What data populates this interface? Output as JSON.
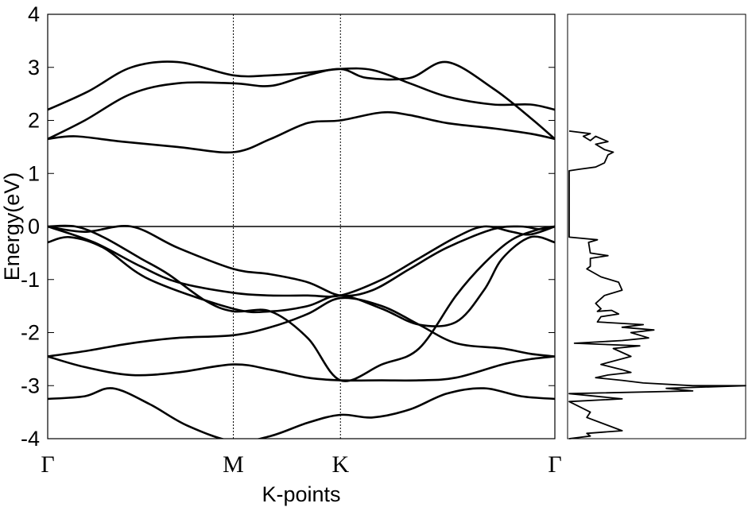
{
  "chart_data": [
    {
      "type": "line",
      "title": "",
      "xlabel": "K-points",
      "ylabel": "Energy(eV)",
      "x_ticks": [
        {
          "label": "Γ",
          "x": 0
        },
        {
          "label": "M",
          "x": 1
        },
        {
          "label": "K",
          "x": 1.577
        },
        {
          "label": "Γ",
          "x": 2.732
        }
      ],
      "xlim": [
        0,
        2.732
      ],
      "ylim": [
        -4,
        4
      ],
      "y_ticks": [
        {
          "label": "4",
          "value": 4
        },
        {
          "label": "3",
          "value": 3
        },
        {
          "label": "2",
          "value": 2
        },
        {
          "label": "1",
          "value": 1
        },
        {
          "label": "0",
          "value": 0
        },
        {
          "label": "-1",
          "value": -1
        },
        {
          "label": "-2",
          "value": -2
        },
        {
          "label": "-3",
          "value": -3
        },
        {
          "label": "-4",
          "value": -4
        }
      ],
      "fermi_level": 0,
      "grid": false,
      "color": "#000000",
      "series": [
        {
          "x": [
            0,
            0.22,
            0.45,
            0.7,
            1,
            1.2,
            1.4,
            1.577,
            1.75,
            1.95,
            2.15,
            2.4,
            2.6,
            2.732
          ],
          "y": [
            2.2,
            2.55,
            3.0,
            3.1,
            2.85,
            2.85,
            2.9,
            2.97,
            2.95,
            2.7,
            2.45,
            2.3,
            2.3,
            2.2
          ]
        },
        {
          "x": [
            0,
            0.2,
            0.45,
            0.7,
            1,
            1.2,
            1.4,
            1.577,
            1.72,
            1.95,
            2.15,
            2.4,
            2.6,
            2.732
          ],
          "y": [
            1.65,
            2.0,
            2.5,
            2.7,
            2.7,
            2.65,
            2.85,
            2.97,
            2.8,
            2.8,
            3.1,
            2.6,
            2.05,
            1.65
          ]
        },
        {
          "x": [
            0,
            0.15,
            0.4,
            0.7,
            1,
            1.2,
            1.4,
            1.577,
            1.8,
            1.95,
            2.15,
            2.4,
            2.6,
            2.732
          ],
          "y": [
            1.65,
            1.7,
            1.6,
            1.5,
            1.4,
            1.65,
            1.95,
            2.0,
            2.15,
            2.1,
            1.95,
            1.85,
            1.75,
            1.65
          ]
        },
        {
          "x": [
            0,
            0.12,
            0.3,
            0.55,
            1,
            1.2,
            1.4,
            1.577,
            1.8,
            2.0,
            2.2,
            2.35,
            2.45,
            2.6,
            2.732
          ],
          "y": [
            -0.3,
            -0.2,
            -0.4,
            -1.0,
            -1.55,
            -1.6,
            -1.5,
            -1.3,
            -1.55,
            -1.85,
            -1.8,
            -1.2,
            -0.6,
            -0.2,
            -0.3
          ]
        },
        {
          "x": [
            0,
            0.15,
            0.3,
            0.5,
            0.65,
            0.85,
            1,
            1.2,
            1.4,
            1.577,
            1.8,
            2.0,
            2.2,
            2.35,
            2.5,
            2.65,
            2.732
          ],
          "y": [
            0,
            0,
            -0.2,
            -0.6,
            -0.9,
            -1.4,
            -1.6,
            -1.6,
            -2.1,
            -2.9,
            -2.6,
            -2.3,
            -1.3,
            -0.7,
            -0.25,
            -0.05,
            0
          ]
        },
        {
          "x": [
            0,
            0.2,
            0.45,
            0.7,
            1,
            1.2,
            1.4,
            1.577,
            1.75,
            1.95,
            2.15,
            2.4,
            2.55,
            2.65,
            2.732
          ],
          "y": [
            0,
            -0.1,
            0,
            -0.4,
            -0.8,
            -0.9,
            -1.05,
            -1.3,
            -1.2,
            -0.8,
            -0.4,
            -0.05,
            0.0,
            -0.05,
            0
          ]
        },
        {
          "x": [
            0,
            0.25,
            0.5,
            0.7,
            1,
            1.2,
            1.4,
            1.577,
            1.8,
            2.0,
            2.2,
            2.35,
            2.5,
            2.6,
            2.732
          ],
          "y": [
            0,
            -0.3,
            -0.75,
            -1.05,
            -1.25,
            -1.3,
            -1.3,
            -1.3,
            -1.0,
            -0.6,
            -0.2,
            -0.0,
            -0.1,
            -0.15,
            0
          ]
        },
        {
          "x": [
            0,
            0.2,
            0.45,
            0.7,
            1,
            1.2,
            1.4,
            1.577,
            1.8,
            2.0,
            2.2,
            2.45,
            2.6,
            2.732
          ],
          "y": [
            -2.45,
            -2.35,
            -2.2,
            -2.1,
            -2.05,
            -1.9,
            -1.65,
            -1.35,
            -1.5,
            -1.85,
            -2.2,
            -2.3,
            -2.4,
            -2.45
          ]
        },
        {
          "x": [
            0,
            0.2,
            0.45,
            0.7,
            1,
            1.2,
            1.4,
            1.577,
            1.8,
            2.0,
            2.2,
            2.45,
            2.6,
            2.732
          ],
          "y": [
            -2.45,
            -2.65,
            -2.8,
            -2.75,
            -2.6,
            -2.7,
            -2.85,
            -2.9,
            -2.9,
            -2.9,
            -2.85,
            -2.6,
            -2.5,
            -2.45
          ]
        },
        {
          "x": [
            0,
            0.2,
            0.35,
            0.55,
            0.75,
            1,
            1.2,
            1.4,
            1.577,
            1.75,
            1.95,
            2.15,
            2.35,
            2.55,
            2.732
          ],
          "y": [
            -3.25,
            -3.2,
            -3.05,
            -3.35,
            -3.75,
            -4.05,
            -3.95,
            -3.7,
            -3.55,
            -3.6,
            -3.45,
            -3.15,
            -3.05,
            -3.2,
            -3.25
          ]
        }
      ]
    },
    {
      "type": "line",
      "title": "",
      "xlabel": "",
      "ylabel": "",
      "ylim": [
        -4,
        4
      ],
      "xlim": [
        0,
        1
      ],
      "color": "#000000",
      "x": [
        0.0,
        0.12,
        0.08,
        0.12,
        0.15,
        0.22,
        0.15,
        0.2,
        0.25,
        0.22,
        0.2,
        0.15,
        0.06,
        0.0,
        0.0,
        0.0,
        0.16,
        0.11,
        0.12,
        0.22,
        0.12,
        0.12,
        0.1,
        0.18,
        0.28,
        0.3,
        0.2,
        0.15,
        0.18,
        0.16,
        0.24,
        0.28,
        0.18,
        0.16,
        0.42,
        0.3,
        0.48,
        0.35,
        0.45,
        0.3,
        0.03,
        0.4,
        0.25,
        0.35,
        0.18,
        0.3,
        0.35,
        0.22,
        0.15,
        0.3,
        0.42,
        0.7,
        1.0,
        0.55,
        0.7,
        0.0,
        0.3,
        0.0,
        0.12,
        0.1,
        0.18,
        0.3,
        0.1,
        0.12,
        0.0
      ],
      "y": [
        1.8,
        1.75,
        1.7,
        1.62,
        1.7,
        1.6,
        1.55,
        1.45,
        1.4,
        1.35,
        1.2,
        1.12,
        1.08,
        1.05,
        0.5,
        -0.2,
        -0.25,
        -0.3,
        -0.5,
        -0.55,
        -0.6,
        -0.75,
        -0.8,
        -0.95,
        -1.05,
        -1.2,
        -1.3,
        -1.45,
        -1.55,
        -1.6,
        -1.58,
        -1.65,
        -1.7,
        -1.8,
        -1.85,
        -1.9,
        -1.95,
        -2.0,
        -2.1,
        -2.15,
        -2.2,
        -2.25,
        -2.3,
        -2.45,
        -2.6,
        -2.7,
        -2.75,
        -2.8,
        -2.85,
        -2.9,
        -2.95,
        -3.0,
        -3.0,
        -3.05,
        -3.1,
        -3.15,
        -3.25,
        -3.3,
        -3.5,
        -3.6,
        -3.7,
        -3.85,
        -3.9,
        -3.95,
        -4.0
      ]
    }
  ]
}
